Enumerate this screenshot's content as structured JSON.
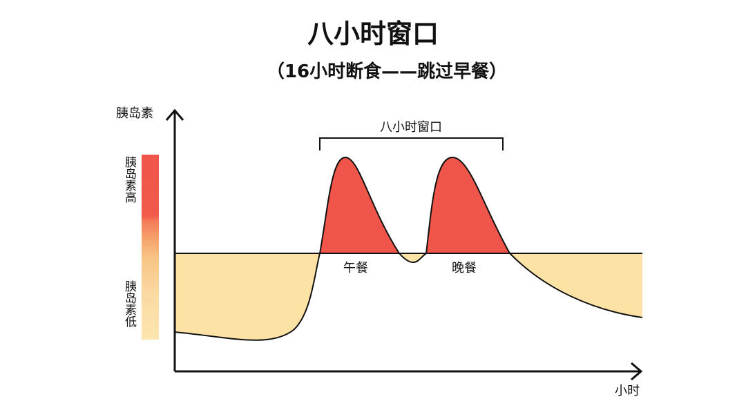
{
  "title": "八小时窗口",
  "subtitle": "（16小时断食——跳过早餐）",
  "axes": {
    "y_label": "胰岛素",
    "x_label": "小时"
  },
  "legend": {
    "high": "胰岛素高",
    "low": "胰岛素低"
  },
  "annotations": {
    "window": "八小时窗口",
    "lunch": "午餐",
    "dinner": "晚餐"
  }
}
